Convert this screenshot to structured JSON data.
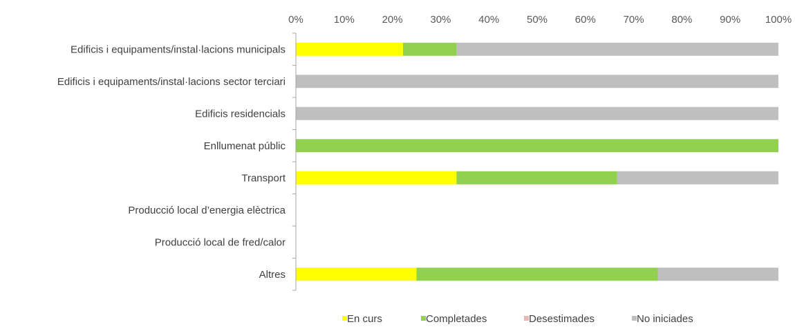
{
  "chart_data": {
    "type": "bar",
    "orientation": "horizontal",
    "stacked": "percent",
    "x_ticks": [
      "0%",
      "10%",
      "20%",
      "30%",
      "40%",
      "50%",
      "60%",
      "70%",
      "80%",
      "90%",
      "100%"
    ],
    "xlim": [
      0,
      100
    ],
    "x_axis_position": "top",
    "categories": [
      "Edificis i equipaments/instal·lacions municipals",
      "Edificis i equipaments/instal·lacions sector terciari",
      "Edificis residencials",
      "Enllumenat públic",
      "Transport",
      "Producció local d’energia elèctrica",
      "Producció local de fred/calor",
      "Altres"
    ],
    "series": [
      {
        "name": "En curs",
        "color": "#FFFF00",
        "values": [
          22.2,
          0,
          0,
          0,
          33.3,
          0,
          0,
          25
        ]
      },
      {
        "name": "Completades",
        "color": "#92D050",
        "values": [
          11.1,
          0,
          0,
          100,
          33.3,
          0,
          0,
          50
        ]
      },
      {
        "name": "Desestimades",
        "color": "#E6B9B8",
        "values": [
          0,
          0,
          0,
          0,
          0,
          0,
          0,
          0
        ]
      },
      {
        "name": "No iniciades",
        "color": "#BFBFBF",
        "values": [
          66.7,
          100,
          100,
          0,
          33.4,
          0,
          0,
          25
        ]
      }
    ],
    "grid": false,
    "legend_position": "bottom-right"
  }
}
